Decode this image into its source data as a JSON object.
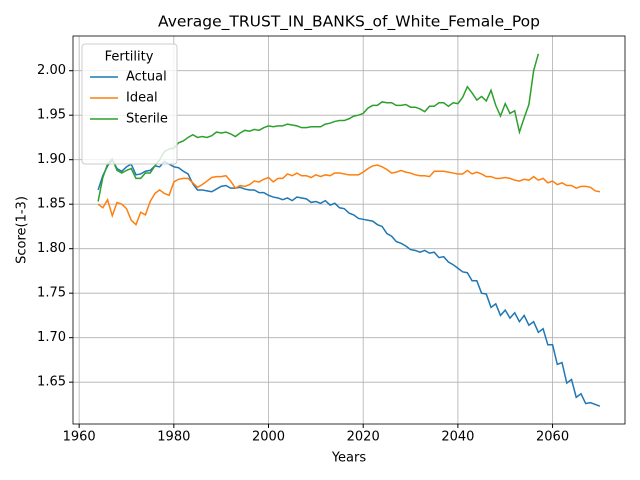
{
  "chart_data": {
    "type": "line",
    "title": "Average_TRUST_IN_BANKS_of_White_Female_Pop",
    "xlabel": "Years",
    "ylabel": "Score(1-3)",
    "legend_title": "Fertility",
    "legend": "upper left",
    "grid": true,
    "xlim": [
      1958.7,
      2075.3
    ],
    "xticks": [
      1960,
      1980,
      2000,
      2020,
      2040,
      2060
    ],
    "ylim": [
      1.603,
      2.039
    ],
    "yticks": [
      1.65,
      {
        "value": 1.7,
        "label": "1.70"
      },
      1.75,
      {
        "value": 1.8,
        "label": "1.80"
      },
      1.85,
      {
        "value": 1.9,
        "label": "1.90"
      },
      1.95,
      {
        "value": 2.0,
        "label": "2.00"
      }
    ],
    "x": [
      1964,
      1965,
      1966,
      1967,
      1968,
      1969,
      1970,
      1971,
      1972,
      1973,
      1974,
      1975,
      1976,
      1977,
      1978,
      1979,
      1980,
      1981,
      1982,
      1983,
      1984,
      1985,
      1986,
      1987,
      1988,
      1989,
      1990,
      1991,
      1992,
      1993,
      1994,
      1995,
      1996,
      1997,
      1998,
      1999,
      2000,
      2001,
      2002,
      2003,
      2004,
      2005,
      2006,
      2007,
      2008,
      2009,
      2010,
      2011,
      2012,
      2013,
      2014,
      2015,
      2016,
      2017,
      2018,
      2019,
      2020,
      2021,
      2022,
      2023,
      2024,
      2025,
      2026,
      2027,
      2028,
      2029,
      2030,
      2031,
      2032,
      2033,
      2034,
      2035,
      2036,
      2037,
      2038,
      2039,
      2040,
      2041,
      2042,
      2043,
      2044,
      2045,
      2046,
      2047,
      2048,
      2049,
      2050,
      2051,
      2052,
      2053,
      2054,
      2055,
      2056,
      2057,
      2058,
      2059,
      2060,
      2061,
      2062,
      2063,
      2064,
      2065,
      2066,
      2067,
      2068,
      2069,
      2070
    ],
    "series": [
      {
        "name": "Actual",
        "color": "#1f77b4",
        "values": [
          1.866,
          1.882,
          1.893,
          1.9,
          1.89,
          1.887,
          1.892,
          1.895,
          1.883,
          1.884,
          1.887,
          1.888,
          1.893,
          1.892,
          1.898,
          1.895,
          1.892,
          1.891,
          1.887,
          1.884,
          1.873,
          1.866,
          1.866,
          1.865,
          1.864,
          1.867,
          1.87,
          1.871,
          1.868,
          1.868,
          1.869,
          1.867,
          1.866,
          1.866,
          1.863,
          1.863,
          1.86,
          1.858,
          1.857,
          1.855,
          1.857,
          1.854,
          1.858,
          1.857,
          1.856,
          1.852,
          1.853,
          1.851,
          1.854,
          1.849,
          1.851,
          1.846,
          1.845,
          1.84,
          1.838,
          1.834,
          1.833,
          1.832,
          1.831,
          1.827,
          1.825,
          1.817,
          1.814,
          1.808,
          1.806,
          1.803,
          1.799,
          1.798,
          1.796,
          1.798,
          1.795,
          1.796,
          1.79,
          1.791,
          1.785,
          1.782,
          1.778,
          1.774,
          1.773,
          1.764,
          1.764,
          1.75,
          1.749,
          1.734,
          1.738,
          1.725,
          1.731,
          1.722,
          1.728,
          1.718,
          1.725,
          1.714,
          1.718,
          1.706,
          1.71,
          1.692,
          1.692,
          1.67,
          1.672,
          1.649,
          1.653,
          1.633,
          1.637,
          1.626,
          1.627,
          1.625,
          1.623
        ]
      },
      {
        "name": "Ideal",
        "color": "#ff7f0e",
        "values": [
          1.85,
          1.846,
          1.855,
          1.837,
          1.852,
          1.85,
          1.845,
          1.832,
          1.827,
          1.841,
          1.838,
          1.853,
          1.862,
          1.866,
          1.862,
          1.86,
          1.875,
          1.878,
          1.879,
          1.879,
          1.874,
          1.869,
          1.872,
          1.876,
          1.88,
          1.881,
          1.881,
          1.882,
          1.876,
          1.868,
          1.871,
          1.87,
          1.872,
          1.876,
          1.875,
          1.878,
          1.88,
          1.875,
          1.879,
          1.879,
          1.884,
          1.882,
          1.885,
          1.882,
          1.882,
          1.88,
          1.883,
          1.881,
          1.883,
          1.882,
          1.885,
          1.885,
          1.884,
          1.883,
          1.883,
          1.883,
          1.886,
          1.89,
          1.893,
          1.894,
          1.892,
          1.889,
          1.885,
          1.886,
          1.888,
          1.886,
          1.885,
          1.883,
          1.882,
          1.882,
          1.881,
          1.887,
          1.887,
          1.887,
          1.886,
          1.885,
          1.884,
          1.884,
          1.888,
          1.884,
          1.886,
          1.884,
          1.881,
          1.881,
          1.879,
          1.879,
          1.88,
          1.879,
          1.877,
          1.876,
          1.878,
          1.877,
          1.881,
          1.877,
          1.879,
          1.874,
          1.876,
          1.872,
          1.874,
          1.871,
          1.871,
          1.868,
          1.87,
          1.87,
          1.869,
          1.865,
          1.864
        ]
      },
      {
        "name": "Sterile",
        "color": "#2ca02c",
        "values": [
          1.853,
          1.88,
          1.895,
          1.901,
          1.888,
          1.885,
          1.888,
          1.89,
          1.879,
          1.879,
          1.885,
          1.885,
          1.893,
          1.9,
          1.909,
          1.912,
          1.913,
          1.919,
          1.921,
          1.925,
          1.928,
          1.925,
          1.926,
          1.925,
          1.927,
          1.931,
          1.93,
          1.931,
          1.929,
          1.926,
          1.93,
          1.933,
          1.932,
          1.934,
          1.933,
          1.936,
          1.938,
          1.937,
          1.938,
          1.938,
          1.94,
          1.939,
          1.938,
          1.936,
          1.936,
          1.937,
          1.937,
          1.937,
          1.94,
          1.941,
          1.943,
          1.944,
          1.944,
          1.946,
          1.949,
          1.95,
          1.952,
          1.958,
          1.961,
          1.961,
          1.965,
          1.964,
          1.964,
          1.961,
          1.961,
          1.962,
          1.959,
          1.959,
          1.957,
          1.954,
          1.96,
          1.96,
          1.964,
          1.964,
          1.96,
          1.964,
          1.963,
          1.97,
          1.982,
          1.975,
          1.967,
          1.971,
          1.966,
          1.978,
          1.961,
          1.949,
          1.963,
          1.952,
          1.955,
          1.931,
          1.947,
          1.962,
          2.0,
          2.019,
          null,
          null,
          null,
          null,
          null,
          null,
          null,
          null,
          null,
          null,
          null,
          null,
          null
        ]
      }
    ]
  }
}
